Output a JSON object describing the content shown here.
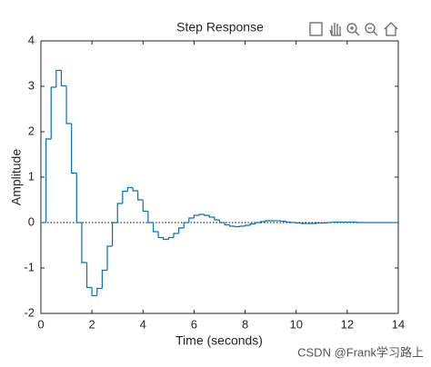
{
  "chart_data": {
    "type": "stairs",
    "title": "Step Response",
    "xlabel": "Time (seconds)",
    "ylabel": "Amplitude",
    "x": [
      0,
      0.2,
      0.4,
      0.6,
      0.8,
      1,
      1.2,
      1.4,
      1.6,
      1.8,
      2,
      2.2,
      2.4,
      2.6,
      2.8,
      3,
      3.2,
      3.4,
      3.6,
      3.8,
      4,
      4.2,
      4.4,
      4.6,
      4.8,
      5,
      5.2,
      5.4,
      5.6,
      5.8,
      6,
      6.2,
      6.4,
      6.6,
      6.8,
      7,
      7.2,
      7.4,
      7.6,
      7.8,
      8,
      8.2,
      8.4,
      8.6,
      8.8,
      9,
      9.2,
      9.4,
      9.6,
      9.8,
      10,
      10.2,
      10.4,
      10.6,
      10.8,
      11,
      11.2,
      11.4,
      11.6,
      11.8,
      12,
      12.2,
      12.4,
      12.6,
      12.8,
      13,
      13.2,
      13.4,
      13.6,
      13.8,
      14
    ],
    "series": [
      {
        "color": "#0072bd",
        "values": [
          0,
          1.84,
          2.98,
          3.35,
          3.01,
          2.18,
          1.09,
          0,
          -0.88,
          -1.43,
          -1.61,
          -1.45,
          -1.05,
          -0.52,
          0,
          0.42,
          0.69,
          0.77,
          0.7,
          0.5,
          0.25,
          0,
          -0.2,
          -0.33,
          -0.37,
          -0.33,
          -0.24,
          -0.12,
          0,
          0.1,
          0.16,
          0.18,
          0.16,
          0.12,
          0.06,
          0,
          -0.05,
          -0.08,
          -0.09,
          -0.08,
          -0.06,
          -0.03,
          0,
          0.02,
          0.04,
          0.04,
          0.04,
          0.03,
          0.01,
          0,
          -0.01,
          -0.02,
          -0.02,
          -0.02,
          -0.01,
          -0.01,
          0,
          0.01,
          0.01,
          0.01,
          0.01,
          0.01,
          0,
          0,
          0,
          0,
          0,
          0,
          0,
          0,
          0
        ]
      }
    ],
    "reference_y": 0,
    "xlim": [
      0,
      14
    ],
    "xticks": [
      0,
      2,
      4,
      6,
      8,
      10,
      12,
      14
    ],
    "ylim": [
      -2,
      4
    ],
    "yticks": [
      -2,
      -1,
      0,
      1,
      2,
      3,
      4
    ]
  },
  "watermark": "CSDN @Frank学习路上"
}
